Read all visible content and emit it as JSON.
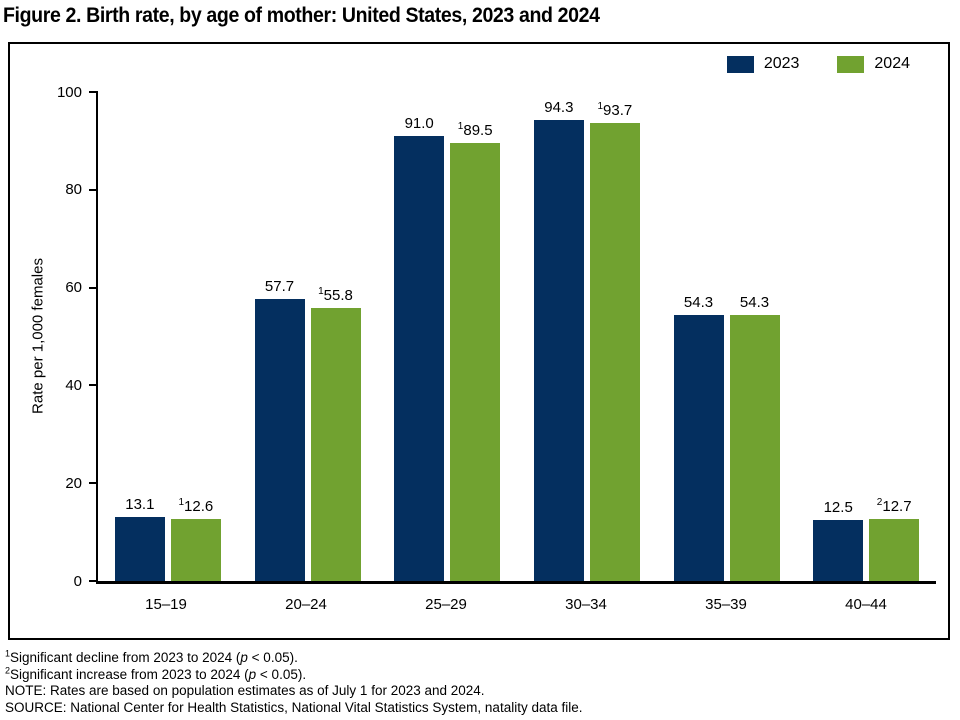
{
  "chart_data": {
    "type": "bar",
    "title": "Figure 2. Birth rate, by age of mother: United States, 2023 and 2024",
    "ylabel": "Rate per 1,000 females",
    "xlabel": "",
    "ylim": [
      0,
      100
    ],
    "yticks": [
      0,
      20,
      40,
      60,
      80,
      100
    ],
    "grid": false,
    "legend_position": "top-right",
    "categories": [
      "15–19",
      "20–24",
      "25–29",
      "30–34",
      "35–39",
      "40–44"
    ],
    "series": [
      {
        "name": "2023",
        "color": "#042f5f",
        "values": [
          13.1,
          57.7,
          91.0,
          94.3,
          54.3,
          12.5
        ],
        "value_labels": [
          "13.1",
          "57.7",
          "91.0",
          "94.3",
          "54.3",
          "12.5"
        ],
        "label_sups": [
          "",
          "",
          "",
          "",
          "",
          ""
        ]
      },
      {
        "name": "2024",
        "color": "#71a230",
        "values": [
          12.6,
          55.8,
          89.5,
          93.7,
          54.3,
          12.7
        ],
        "value_labels": [
          "12.6",
          "55.8",
          "89.5",
          "93.7",
          "54.3",
          "12.7"
        ],
        "label_sups": [
          "1",
          "1",
          "1",
          "1",
          "",
          "2"
        ]
      }
    ]
  },
  "footnotes": [
    {
      "segments": [
        {
          "t": "sup",
          "v": "1"
        },
        {
          "t": "text",
          "v": "Significant decline from 2023 to 2024 ("
        },
        {
          "t": "i",
          "v": "p"
        },
        {
          "t": "text",
          "v": " < 0.05)."
        }
      ]
    },
    {
      "segments": [
        {
          "t": "sup",
          "v": "2"
        },
        {
          "t": "text",
          "v": "Significant increase from 2023 to 2024 ("
        },
        {
          "t": "i",
          "v": "p"
        },
        {
          "t": "text",
          "v": " < 0.05)."
        }
      ]
    },
    {
      "segments": [
        {
          "t": "text",
          "v": "NOTE: Rates are based on population estimates as of July 1 for 2023 and 2024."
        }
      ]
    },
    {
      "segments": [
        {
          "t": "text",
          "v": "SOURCE: National Center for Health Statistics, National Vital Statistics System, natality data file."
        }
      ]
    }
  ]
}
